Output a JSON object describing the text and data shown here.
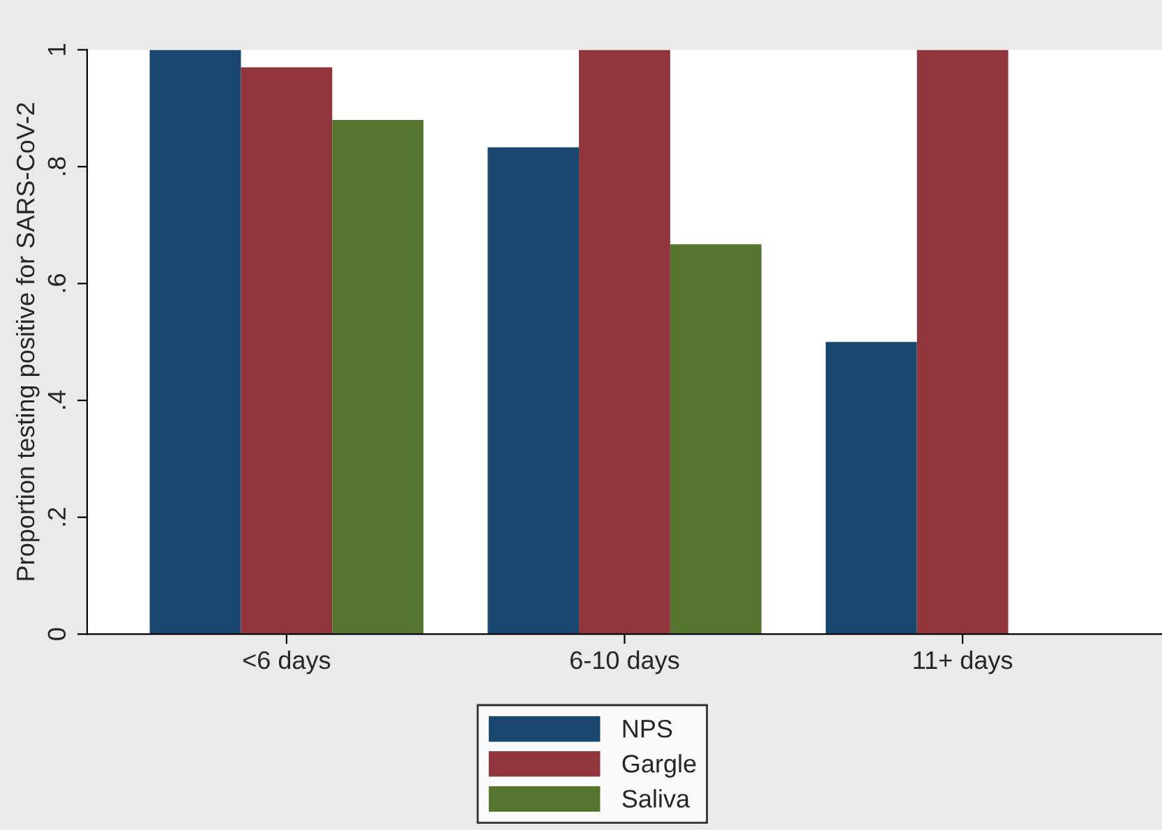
{
  "chart_data": {
    "type": "bar",
    "ylabel": "Proportion testing positive for SARS-CoV-2",
    "categories": [
      "<6 days",
      "6-10 days",
      "11+ days"
    ],
    "series": [
      {
        "name": "NPS",
        "color": "#1a476f",
        "values": [
          1,
          0.833,
          0.5
        ]
      },
      {
        "name": "Gargle",
        "color": "#90353b",
        "values": [
          0.97,
          1,
          1
        ]
      },
      {
        "name": "Saliva",
        "color": "#55752f",
        "values": [
          0.88,
          0.667,
          null
        ]
      }
    ],
    "ylim": [
      0,
      1
    ],
    "yticks": [
      0,
      {
        "value": 0.2,
        "label": ".2"
      },
      {
        "value": 0.4,
        "label": ".4"
      },
      {
        "value": 0.6,
        "label": ".6"
      },
      {
        "value": 0.8,
        "label": ".8"
      },
      1
    ],
    "grid": false,
    "legend": "bottom"
  }
}
